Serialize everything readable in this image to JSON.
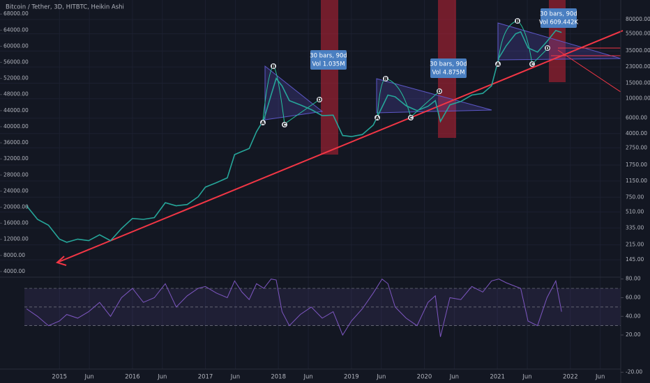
{
  "chart_data": [
    {
      "type": "line",
      "title": "Bitcoin / Tether, 3D, HITBTC, Heikin Ashi",
      "x": [
        2014.55,
        2014.7,
        2014.85,
        2015.0,
        2015.1,
        2015.25,
        2015.4,
        2015.55,
        2015.7,
        2015.85,
        2016.0,
        2016.15,
        2016.3,
        2016.45,
        2016.6,
        2016.75,
        2016.9,
        2017.0,
        2017.15,
        2017.3,
        2017.4,
        2017.5,
        2017.6,
        2017.7,
        2017.8,
        2017.9,
        2017.97,
        2018.05,
        2018.15,
        2018.3,
        2018.45,
        2018.6,
        2018.75,
        2018.88,
        2019.0,
        2019.15,
        2019.3,
        2019.42,
        2019.5,
        2019.6,
        2019.75,
        2019.9,
        2020.05,
        2020.15,
        2020.22,
        2020.35,
        2020.5,
        2020.65,
        2020.8,
        2020.92,
        2021.02,
        2021.12,
        2021.25,
        2021.32,
        2021.42,
        2021.55,
        2021.68,
        2021.8,
        2021.88
      ],
      "series": [
        {
          "color": "#26a69a",
          "axis": "y2",
          "values": [
            600,
            420,
            360,
            250,
            230,
            250,
            240,
            280,
            240,
            330,
            430,
            420,
            440,
            650,
            600,
            620,
            760,
            980,
            1100,
            1250,
            2300,
            2500,
            2700,
            4200,
            5800,
            11000,
            17000,
            14000,
            9500,
            8500,
            7500,
            6400,
            6500,
            3800,
            3700,
            3900,
            5000,
            8000,
            11000,
            10500,
            8300,
            7300,
            8200,
            9500,
            5500,
            8500,
            9300,
            11000,
            11500,
            14000,
            29000,
            40000,
            55000,
            58000,
            38000,
            34000,
            45000,
            60000,
            57000
          ]
        }
      ],
      "xlim": [
        2014.52,
        2022.69
      ],
      "xticks": [
        2015,
        {
          "value": 2015.41,
          "label": "Jun"
        },
        2016,
        {
          "value": 2016.41,
          "label": "Jun"
        },
        2017,
        {
          "value": 2017.41,
          "label": "Jun"
        },
        2018,
        {
          "value": 2018.41,
          "label": "Jun"
        },
        2019,
        {
          "value": 2019.41,
          "label": "Jun"
        },
        2020,
        {
          "value": 2020.41,
          "label": "Jun"
        },
        2021,
        {
          "value": 2021.41,
          "label": "Jun"
        },
        2022,
        {
          "value": 2022.41,
          "label": "Jun"
        }
      ],
      "ylim": [
        2600,
        71500
      ],
      "yticks": [
        {
          "value": 68000,
          "label": "68000.00"
        },
        {
          "value": 64000,
          "label": "64000.00"
        },
        {
          "value": 60000,
          "label": "60000.00"
        },
        {
          "value": 56000,
          "label": "56000.00"
        },
        {
          "value": 52000,
          "label": "52000.00"
        },
        {
          "value": 48000,
          "label": "48000.00"
        },
        {
          "value": 44000,
          "label": "44000.00"
        },
        {
          "value": 40000,
          "label": "40000.00"
        },
        {
          "value": 36000,
          "label": "36000.00"
        },
        {
          "value": 32000,
          "label": "32000.00"
        },
        {
          "value": 28000,
          "label": "28000.00"
        },
        {
          "value": 24000,
          "label": "24000.00"
        },
        {
          "value": 20000,
          "label": "20000.00"
        },
        {
          "value": 16000,
          "label": "16000.00"
        },
        {
          "value": 12000,
          "label": "12000.00"
        },
        {
          "value": 8000,
          "label": "8000.00"
        },
        {
          "value": 4000,
          "label": "4000.00"
        }
      ],
      "y2lim": [
        92,
        133600
      ],
      "y2log": true,
      "y2ticks": [
        {
          "value": 80000,
          "label": "80000.00"
        },
        {
          "value": 55000,
          "label": "55000.00"
        },
        {
          "value": 35000,
          "label": "35000.00"
        },
        {
          "value": 23000,
          "label": "23000.00"
        },
        {
          "value": 15000,
          "label": "15000.00"
        },
        {
          "value": 10000,
          "label": "10000.00"
        },
        {
          "value": 6000,
          "label": "6000.00"
        },
        {
          "value": 4000,
          "label": "4000.00"
        },
        {
          "value": 2750,
          "label": "2750.00"
        },
        {
          "value": 1750,
          "label": "1750.00"
        },
        {
          "value": 1150,
          "label": "1150.00"
        },
        {
          "value": 750,
          "label": "750.00"
        },
        {
          "value": 510,
          "label": "510.00"
        },
        {
          "value": 335,
          "label": "335.00"
        },
        {
          "value": 215,
          "label": "215.00"
        },
        {
          "value": 145,
          "label": "145.00"
        }
      ],
      "grid": true,
      "annotations": [
        [
          "30 bars, 90d",
          "Vol 1.035M"
        ],
        [
          "30 bars, 90d",
          "Vol 4.875M"
        ],
        [
          "30 bars, 90d",
          "Vol 609.442K"
        ]
      ],
      "pattern_labels": [
        [
          "A",
          "B",
          "C",
          "D"
        ],
        [
          "A",
          "B",
          "C",
          "D"
        ],
        [
          "A",
          "B",
          "C",
          "D"
        ]
      ]
    },
    {
      "type": "line",
      "series": [
        {
          "color": "#7e57c2",
          "values": [
            48,
            40,
            30,
            35,
            42,
            38,
            45,
            55,
            40,
            60,
            70,
            55,
            60,
            75,
            50,
            62,
            70,
            72,
            65,
            60,
            78,
            66,
            58,
            75,
            70,
            80,
            79,
            45,
            30,
            42,
            50,
            38,
            45,
            20,
            35,
            48,
            65,
            80,
            75,
            50,
            38,
            30,
            55,
            62,
            18,
            60,
            58,
            72,
            66,
            78,
            80,
            76,
            72,
            70,
            35,
            30,
            60,
            78,
            45
          ]
        }
      ],
      "ylim": [
        -24,
        82
      ],
      "yticks": [
        {
          "value": 80,
          "label": "80.00"
        },
        {
          "value": 60,
          "label": "60.00"
        },
        {
          "value": 40,
          "label": "40.00"
        },
        {
          "value": 20,
          "label": "20.00"
        },
        {
          "value": -20,
          "label": "-20.00"
        }
      ],
      "band": [
        30,
        70
      ],
      "midline": 50
    }
  ]
}
